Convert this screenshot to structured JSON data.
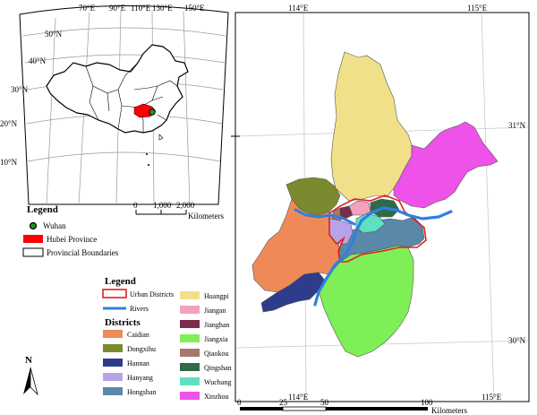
{
  "inset_map": {
    "lon_labels": [
      "70°E",
      "90°E",
      "110°E",
      "130°E",
      "150°E"
    ],
    "lat_labels": [
      "50°N",
      "40°N",
      "30°N",
      "20°N",
      "10°N"
    ],
    "scale_ticks": [
      "0",
      "1,000",
      "2,000"
    ],
    "scale_unit": "Kilometers",
    "legend_title": "Legend",
    "legend_items": [
      {
        "label": "Wuhan",
        "color": "#1a9a1a"
      },
      {
        "label": "Hubei Province",
        "color": "#ff0000"
      },
      {
        "label": "Provincial Boundaries",
        "color": "#ffffff"
      }
    ]
  },
  "main_map": {
    "lon_labels": [
      "114°E",
      "115°E",
      "114°E",
      "115°E"
    ],
    "lat_labels": [
      "31°N",
      "30°N"
    ],
    "scale_ticks": [
      "0",
      "25",
      "50",
      "100"
    ],
    "scale_unit": "Kilometers",
    "north_label": "N"
  },
  "legend": {
    "title": "Legend",
    "urban_label": "Urban Districts",
    "rivers_label": "Rivers",
    "districts_title": "Districts",
    "districts_left": [
      {
        "label": "Caidian",
        "color": "#ef8a58"
      },
      {
        "label": "Dongxihu",
        "color": "#7b8a2e"
      },
      {
        "label": "Hannan",
        "color": "#2f3c8c"
      },
      {
        "label": "Hanyang",
        "color": "#b9a3e8"
      },
      {
        "label": "Hongshan",
        "color": "#5a88a8"
      }
    ],
    "districts_right": [
      {
        "label": "Huangpi",
        "color": "#f1e08a"
      },
      {
        "label": "Jiangan",
        "color": "#f5a0c0"
      },
      {
        "label": "Jianghan",
        "color": "#7b2c4a"
      },
      {
        "label": "Jiangxia",
        "color": "#7fef58"
      },
      {
        "label": "Qiaokou",
        "color": "#a6776a"
      },
      {
        "label": "Qingshan",
        "color": "#2e6b4a"
      },
      {
        "label": "Wuchang",
        "color": "#5fe0c0"
      },
      {
        "label": "Xinzhou",
        "color": "#ee52e8"
      }
    ],
    "colors": {
      "urban_outline": "#e02020",
      "river": "#2f7fe0"
    }
  }
}
